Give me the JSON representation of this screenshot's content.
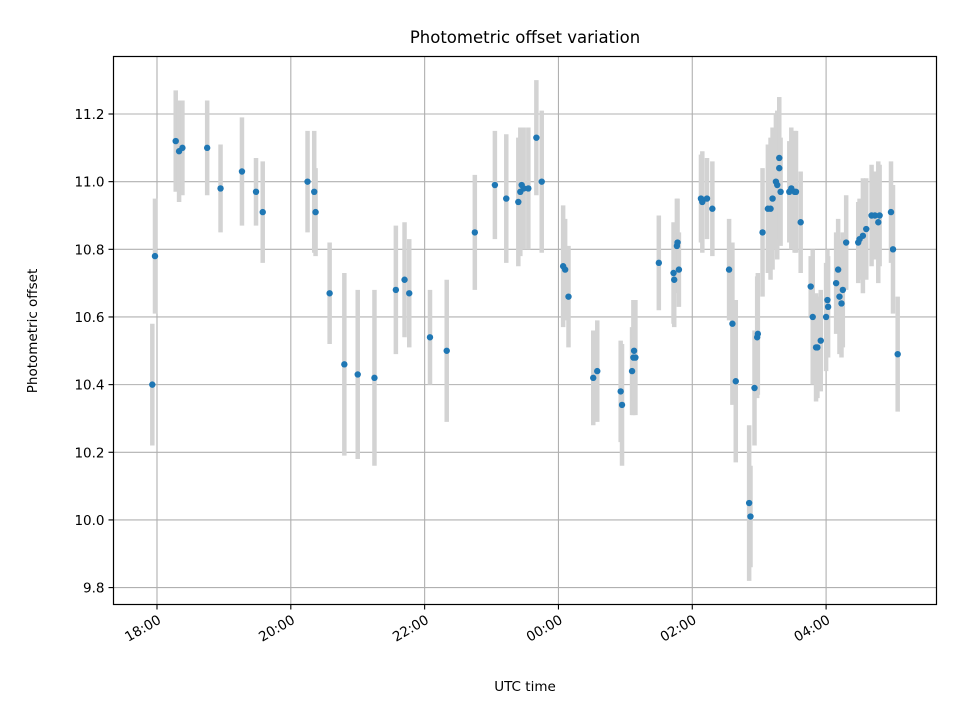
{
  "chart_data": {
    "type": "scatter",
    "title": "Photometric offset variation",
    "xlabel": "UTC time",
    "ylabel": "Photometric offset",
    "x_unit": "UTC hours (continuing past midnight as 24+)",
    "xlim": [
      17.35,
      29.65
    ],
    "ylim": [
      9.75,
      11.37
    ],
    "x_ticks": [
      {
        "value": 18,
        "label": "18:00"
      },
      {
        "value": 20,
        "label": "20:00"
      },
      {
        "value": 22,
        "label": "22:00"
      },
      {
        "value": 24,
        "label": "00:00"
      },
      {
        "value": 26,
        "label": "02:00"
      },
      {
        "value": 28,
        "label": "04:00"
      }
    ],
    "y_ticks": [
      {
        "value": 9.8,
        "label": "9.8"
      },
      {
        "value": 10.0,
        "label": "10.0"
      },
      {
        "value": 10.2,
        "label": "10.2"
      },
      {
        "value": 10.4,
        "label": "10.4"
      },
      {
        "value": 10.6,
        "label": "10.6"
      },
      {
        "value": 10.8,
        "label": "10.8"
      },
      {
        "value": 11.0,
        "label": "11.0"
      },
      {
        "value": 11.2,
        "label": "11.2"
      }
    ],
    "grid": true,
    "point_color": "#1f77b4",
    "errorbar_color": "#d3d3d3",
    "series": [
      {
        "x": [
          17.93,
          17.97,
          18.28,
          18.33,
          18.38,
          18.75,
          18.95,
          19.27,
          19.48,
          19.58,
          20.25,
          20.35,
          20.37,
          20.58,
          20.8,
          21.0,
          21.25,
          21.57,
          21.7,
          21.77,
          22.08,
          22.33,
          22.75,
          23.05,
          23.22,
          23.4,
          23.43,
          23.45,
          23.48,
          23.55,
          23.67,
          23.75,
          24.07,
          24.1,
          24.15,
          24.52,
          24.58,
          24.93,
          24.95,
          25.1,
          25.12,
          25.13,
          25.15,
          25.5,
          25.72,
          25.73,
          25.77,
          25.78,
          25.8,
          26.13,
          26.15,
          26.22,
          26.3,
          26.55,
          26.6,
          26.65,
          26.85,
          26.87,
          26.93,
          26.97,
          26.98,
          27.05,
          27.13,
          27.17,
          27.2,
          27.25,
          27.27,
          27.3,
          27.3,
          27.32,
          27.45,
          27.48,
          27.53,
          27.55,
          27.62,
          27.77,
          27.8,
          27.85,
          27.87,
          27.92,
          28.0,
          28.02,
          28.03,
          28.15,
          28.18,
          28.2,
          28.23,
          28.25,
          28.3,
          28.48,
          28.5,
          28.55,
          28.6,
          28.68,
          28.73,
          28.78,
          28.8,
          28.97,
          29.0,
          29.07
        ],
        "y": [
          10.4,
          10.78,
          11.12,
          11.09,
          11.1,
          11.1,
          10.98,
          11.03,
          10.97,
          10.91,
          11.0,
          10.97,
          10.91,
          10.67,
          10.46,
          10.43,
          10.42,
          10.68,
          10.71,
          10.67,
          10.54,
          10.5,
          10.85,
          10.99,
          10.95,
          10.94,
          10.97,
          10.99,
          10.98,
          10.98,
          11.13,
          11.0,
          10.75,
          10.74,
          10.66,
          10.42,
          10.44,
          10.38,
          10.34,
          10.44,
          10.48,
          10.5,
          10.48,
          10.76,
          10.73,
          10.71,
          10.81,
          10.82,
          10.74,
          10.95,
          10.94,
          10.95,
          10.92,
          10.74,
          10.58,
          10.41,
          10.05,
          10.01,
          10.39,
          10.54,
          10.55,
          10.85,
          10.92,
          10.92,
          10.95,
          11.0,
          10.99,
          11.04,
          11.07,
          10.97,
          10.97,
          10.98,
          10.97,
          10.97,
          10.88,
          10.69,
          10.6,
          10.51,
          10.51,
          10.53,
          10.6,
          10.65,
          10.63,
          10.7,
          10.74,
          10.66,
          10.64,
          10.68,
          10.82,
          10.82,
          10.83,
          10.84,
          10.86,
          10.9,
          10.9,
          10.88,
          10.9,
          10.91,
          10.8,
          10.49
        ],
        "yerr": [
          0.18,
          0.17,
          0.15,
          0.15,
          0.14,
          0.14,
          0.13,
          0.16,
          0.1,
          0.15,
          0.15,
          0.18,
          0.13,
          0.15,
          0.27,
          0.25,
          0.26,
          0.19,
          0.17,
          0.16,
          0.14,
          0.21,
          0.17,
          0.16,
          0.19,
          0.19,
          0.19,
          0.17,
          0.18,
          0.18,
          0.17,
          0.21,
          0.18,
          0.15,
          0.15,
          0.14,
          0.15,
          0.15,
          0.18,
          0.13,
          0.17,
          0.15,
          0.17,
          0.14,
          0.15,
          0.14,
          0.14,
          0.13,
          0.11,
          0.13,
          0.15,
          0.12,
          0.14,
          0.15,
          0.24,
          0.24,
          0.23,
          0.15,
          0.17,
          0.18,
          0.18,
          0.19,
          0.19,
          0.21,
          0.21,
          0.2,
          0.22,
          0.21,
          0.18,
          0.16,
          0.15,
          0.18,
          0.18,
          0.18,
          0.15,
          0.09,
          0.2,
          0.16,
          0.15,
          0.15,
          0.16,
          0.15,
          0.15,
          0.15,
          0.15,
          0.17,
          0.16,
          0.17,
          0.14,
          0.12,
          0.12,
          0.17,
          0.15,
          0.15,
          0.13,
          0.18,
          0.15,
          0.15,
          0.19,
          0.17
        ]
      }
    ]
  }
}
